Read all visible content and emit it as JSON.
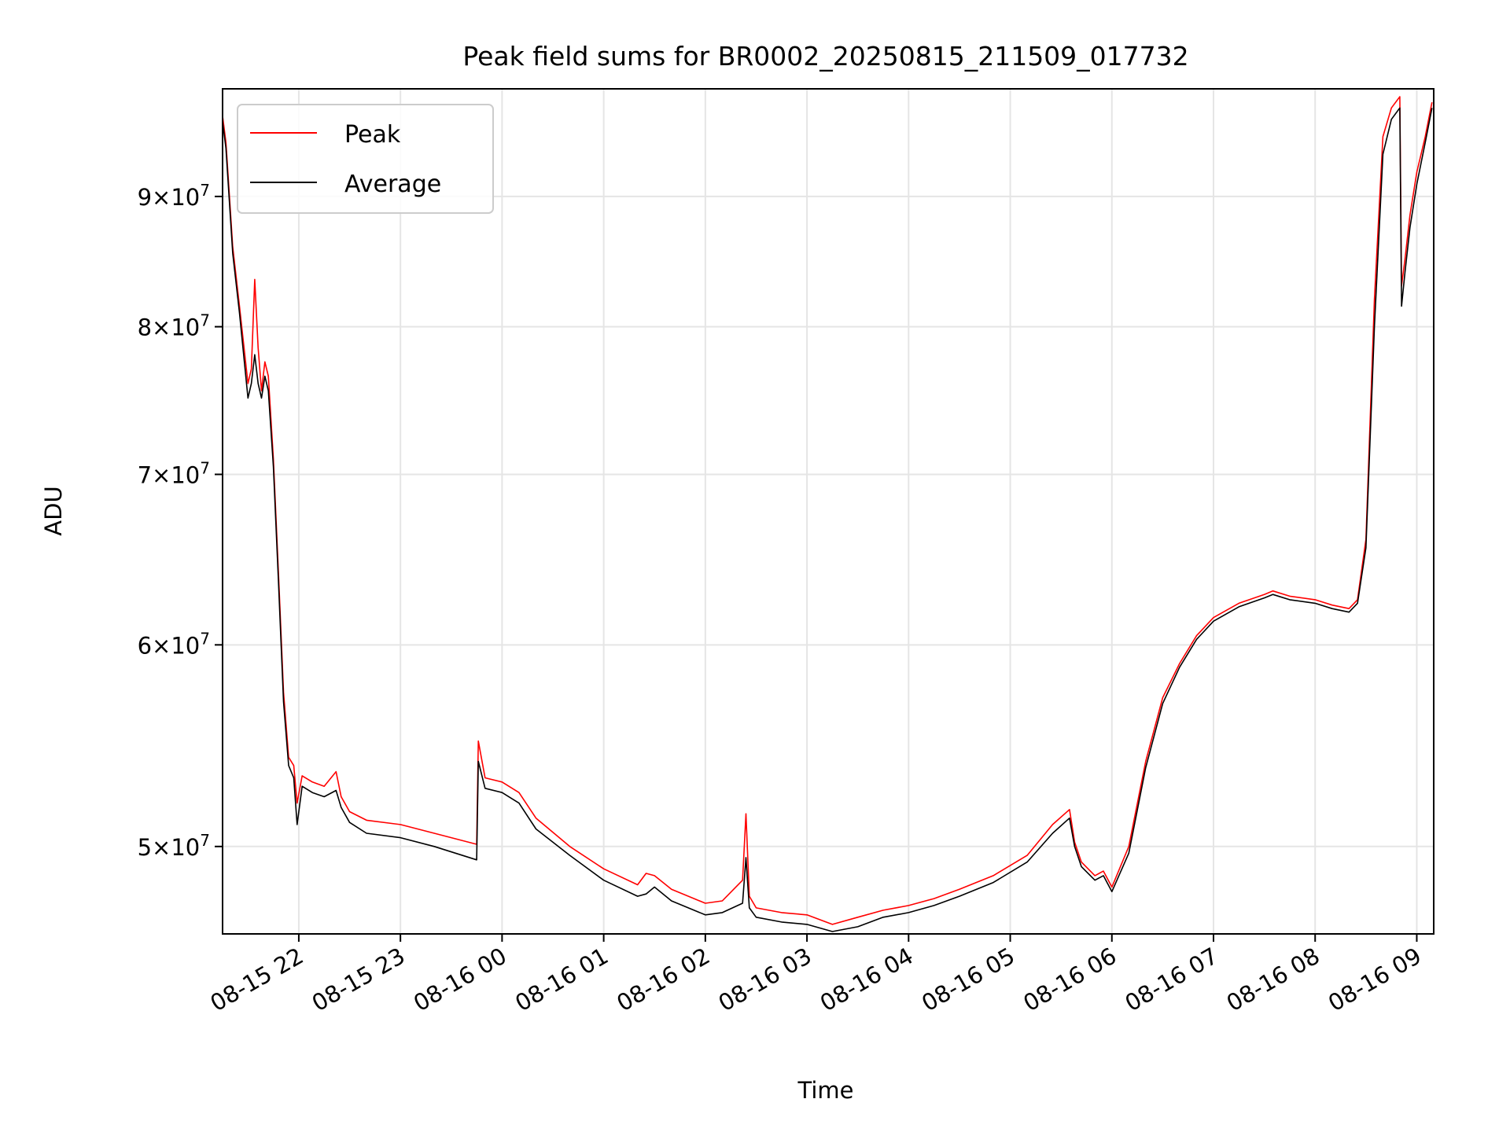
{
  "chart_data": {
    "type": "line",
    "title": "Peak field sums for BR0002_20250815_211509_017732",
    "xlabel": "Time",
    "ylabel": "ADU",
    "yscale": "log",
    "grid": true,
    "legend_position": "top-left",
    "x_range": [
      "2025-08-15 21:15",
      "2025-08-16 09:10"
    ],
    "y_range": [
      46200000,
      99200000
    ],
    "x_ticks": [
      {
        "value": "2025-08-15 22:00",
        "label": "08-15 22"
      },
      {
        "value": "2025-08-15 23:00",
        "label": "08-15 23"
      },
      {
        "value": "2025-08-16 00:00",
        "label": "08-16 00"
      },
      {
        "value": "2025-08-16 01:00",
        "label": "08-16 01"
      },
      {
        "value": "2025-08-16 02:00",
        "label": "08-16 02"
      },
      {
        "value": "2025-08-16 03:00",
        "label": "08-16 03"
      },
      {
        "value": "2025-08-16 04:00",
        "label": "08-16 04"
      },
      {
        "value": "2025-08-16 05:00",
        "label": "08-16 05"
      },
      {
        "value": "2025-08-16 06:00",
        "label": "08-16 06"
      },
      {
        "value": "2025-08-16 07:00",
        "label": "08-16 07"
      },
      {
        "value": "2025-08-16 08:00",
        "label": "08-16 08"
      },
      {
        "value": "2025-08-16 09:00",
        "label": "08-16 09"
      }
    ],
    "y_ticks": [
      {
        "value": 50000000,
        "mantissa": "5",
        "base": "10",
        "exponent": "7"
      },
      {
        "value": 60000000,
        "mantissa": "6",
        "base": "10",
        "exponent": "7"
      },
      {
        "value": 70000000,
        "mantissa": "7",
        "base": "10",
        "exponent": "7"
      },
      {
        "value": 80000000,
        "mantissa": "8",
        "base": "10",
        "exponent": "7"
      },
      {
        "value": 90000000,
        "mantissa": "9",
        "base": "10",
        "exponent": "7"
      }
    ],
    "series": [
      {
        "name": "Peak",
        "color": "#ff0000",
        "x": [
          "2025-08-15 21:15",
          "2025-08-15 21:17",
          "2025-08-15 21:21",
          "2025-08-15 21:25",
          "2025-08-15 21:30",
          "2025-08-15 21:32",
          "2025-08-15 21:34",
          "2025-08-15 21:36",
          "2025-08-15 21:38",
          "2025-08-15 21:40",
          "2025-08-15 21:42",
          "2025-08-15 21:45",
          "2025-08-15 21:48",
          "2025-08-15 21:51",
          "2025-08-15 21:54",
          "2025-08-15 21:57",
          "2025-08-15 21:59",
          "2025-08-15 22:02",
          "2025-08-15 22:08",
          "2025-08-15 22:15",
          "2025-08-15 22:22",
          "2025-08-15 22:25",
          "2025-08-15 22:30",
          "2025-08-15 22:40",
          "2025-08-15 23:00",
          "2025-08-15 23:20",
          "2025-08-15 23:45",
          "2025-08-15 23:46",
          "2025-08-15 23:50",
          "2025-08-16 00:00",
          "2025-08-16 00:10",
          "2025-08-16 00:20",
          "2025-08-16 00:40",
          "2025-08-16 01:00",
          "2025-08-16 01:20",
          "2025-08-16 01:25",
          "2025-08-16 01:30",
          "2025-08-16 01:40",
          "2025-08-16 02:00",
          "2025-08-16 02:10",
          "2025-08-16 02:22",
          "2025-08-16 02:24",
          "2025-08-16 02:26",
          "2025-08-16 02:30",
          "2025-08-16 02:45",
          "2025-08-16 03:00",
          "2025-08-16 03:15",
          "2025-08-16 03:30",
          "2025-08-16 03:45",
          "2025-08-16 04:00",
          "2025-08-16 04:15",
          "2025-08-16 04:30",
          "2025-08-16 04:50",
          "2025-08-16 05:10",
          "2025-08-16 05:25",
          "2025-08-16 05:35",
          "2025-08-16 05:38",
          "2025-08-16 05:42",
          "2025-08-16 05:50",
          "2025-08-16 05:55",
          "2025-08-16 06:00",
          "2025-08-16 06:10",
          "2025-08-16 06:20",
          "2025-08-16 06:30",
          "2025-08-16 06:40",
          "2025-08-16 06:50",
          "2025-08-16 07:00",
          "2025-08-16 07:15",
          "2025-08-16 07:30",
          "2025-08-16 07:35",
          "2025-08-16 07:45",
          "2025-08-16 08:00",
          "2025-08-16 08:10",
          "2025-08-16 08:20",
          "2025-08-16 08:25",
          "2025-08-16 08:30",
          "2025-08-16 08:35",
          "2025-08-16 08:40",
          "2025-08-16 08:45",
          "2025-08-16 08:50",
          "2025-08-16 08:51",
          "2025-08-16 08:53",
          "2025-08-16 08:56",
          "2025-08-16 09:00",
          "2025-08-16 09:05",
          "2025-08-16 09:09"
        ],
        "values": [
          96800000,
          94500000,
          86000000,
          81500000,
          76000000,
          77000000,
          83500000,
          78500000,
          75500000,
          77500000,
          76500000,
          71000000,
          64000000,
          57500000,
          54200000,
          53800000,
          52000000,
          53300000,
          53000000,
          52800000,
          53500000,
          52300000,
          51600000,
          51200000,
          51000000,
          50600000,
          50100000,
          55000000,
          53200000,
          53000000,
          52500000,
          51300000,
          50000000,
          49000000,
          48300000,
          48800000,
          48700000,
          48100000,
          47500000,
          47600000,
          48500000,
          51500000,
          47800000,
          47300000,
          47100000,
          47000000,
          46600000,
          46900000,
          47200000,
          47400000,
          47700000,
          48100000,
          48700000,
          49600000,
          51000000,
          51700000,
          50200000,
          49300000,
          48700000,
          48900000,
          48200000,
          50000000,
          54000000,
          57200000,
          59000000,
          60500000,
          61500000,
          62300000,
          62800000,
          63000000,
          62700000,
          62500000,
          62200000,
          62000000,
          62500000,
          66000000,
          82000000,
          95000000,
          97500000,
          98500000,
          83000000,
          85000000,
          88500000,
          92000000,
          95000000,
          98000000
        ]
      },
      {
        "name": "Average",
        "color": "#000000",
        "x": [
          "2025-08-15 21:15",
          "2025-08-15 21:17",
          "2025-08-15 21:21",
          "2025-08-15 21:25",
          "2025-08-15 21:30",
          "2025-08-15 21:32",
          "2025-08-15 21:34",
          "2025-08-15 21:36",
          "2025-08-15 21:38",
          "2025-08-15 21:40",
          "2025-08-15 21:42",
          "2025-08-15 21:45",
          "2025-08-15 21:48",
          "2025-08-15 21:51",
          "2025-08-15 21:54",
          "2025-08-15 21:57",
          "2025-08-15 21:59",
          "2025-08-15 22:02",
          "2025-08-15 22:08",
          "2025-08-15 22:15",
          "2025-08-15 22:22",
          "2025-08-15 22:25",
          "2025-08-15 22:30",
          "2025-08-15 22:40",
          "2025-08-15 23:00",
          "2025-08-15 23:20",
          "2025-08-15 23:45",
          "2025-08-15 23:46",
          "2025-08-15 23:50",
          "2025-08-16 00:00",
          "2025-08-16 00:10",
          "2025-08-16 00:20",
          "2025-08-16 00:40",
          "2025-08-16 01:00",
          "2025-08-16 01:20",
          "2025-08-16 01:25",
          "2025-08-16 01:30",
          "2025-08-16 01:40",
          "2025-08-16 02:00",
          "2025-08-16 02:10",
          "2025-08-16 02:22",
          "2025-08-16 02:24",
          "2025-08-16 02:26",
          "2025-08-16 02:30",
          "2025-08-16 02:45",
          "2025-08-16 03:00",
          "2025-08-16 03:15",
          "2025-08-16 03:30",
          "2025-08-16 03:45",
          "2025-08-16 04:00",
          "2025-08-16 04:15",
          "2025-08-16 04:30",
          "2025-08-16 04:50",
          "2025-08-16 05:10",
          "2025-08-16 05:25",
          "2025-08-16 05:35",
          "2025-08-16 05:38",
          "2025-08-16 05:42",
          "2025-08-16 05:50",
          "2025-08-16 05:55",
          "2025-08-16 06:00",
          "2025-08-16 06:10",
          "2025-08-16 06:20",
          "2025-08-16 06:30",
          "2025-08-16 06:40",
          "2025-08-16 06:50",
          "2025-08-16 07:00",
          "2025-08-16 07:15",
          "2025-08-16 07:30",
          "2025-08-16 07:35",
          "2025-08-16 07:45",
          "2025-08-16 08:00",
          "2025-08-16 08:10",
          "2025-08-16 08:20",
          "2025-08-16 08:25",
          "2025-08-16 08:30",
          "2025-08-16 08:35",
          "2025-08-16 08:40",
          "2025-08-16 08:45",
          "2025-08-16 08:50",
          "2025-08-16 08:51",
          "2025-08-16 08:53",
          "2025-08-16 08:56",
          "2025-08-16 09:00",
          "2025-08-16 09:05",
          "2025-08-16 09:09"
        ],
        "values": [
          96300000,
          94000000,
          85500000,
          81000000,
          75000000,
          76000000,
          78000000,
          76000000,
          75000000,
          76500000,
          75500000,
          70500000,
          63500000,
          57000000,
          53800000,
          53200000,
          51000000,
          52800000,
          52500000,
          52300000,
          52600000,
          51800000,
          51100000,
          50600000,
          50400000,
          50000000,
          49400000,
          54000000,
          52700000,
          52500000,
          52000000,
          50800000,
          49600000,
          48500000,
          47800000,
          47900000,
          48200000,
          47600000,
          47000000,
          47100000,
          47500000,
          49500000,
          47300000,
          46900000,
          46700000,
          46600000,
          46300000,
          46500000,
          46900000,
          47100000,
          47400000,
          47800000,
          48400000,
          49300000,
          50600000,
          51300000,
          50000000,
          49100000,
          48500000,
          48700000,
          48000000,
          49700000,
          53700000,
          56900000,
          58800000,
          60300000,
          61300000,
          62100000,
          62600000,
          62800000,
          62500000,
          62300000,
          62000000,
          61800000,
          62300000,
          65500000,
          80000000,
          93500000,
          96500000,
          97500000,
          81500000,
          84000000,
          87500000,
          91000000,
          94500000,
          97500000
        ]
      }
    ]
  }
}
